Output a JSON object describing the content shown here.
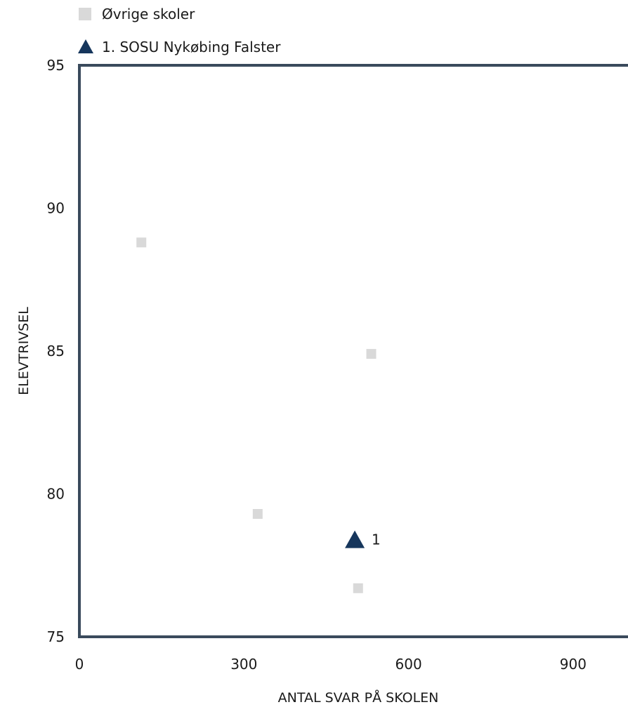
{
  "chart_data": {
    "type": "scatter",
    "title": "",
    "xlabel": "ANTAL SVAR PÅ SKOLEN",
    "ylabel": "ELEVTRIVSEL",
    "xlim": [
      0,
      1000
    ],
    "ylim": [
      75,
      95
    ],
    "x_ticks": [
      0,
      300,
      600,
      900
    ],
    "y_ticks": [
      75,
      80,
      85,
      90,
      95
    ],
    "legend_placement": "top-left",
    "series": [
      {
        "name": "Øvrige skoler",
        "marker": "square",
        "color": "#d9d9d9",
        "points": [
          {
            "x": 113,
            "y": 88.8
          },
          {
            "x": 532,
            "y": 84.9
          },
          {
            "x": 325,
            "y": 79.3
          },
          {
            "x": 508,
            "y": 76.7
          }
        ]
      },
      {
        "name": "1. SOSU Nykøbing Falster",
        "marker": "triangle",
        "color": "#16365c",
        "points": [
          {
            "x": 502,
            "y": 78.4,
            "label": "1"
          }
        ]
      }
    ],
    "axis_color": "#3a4a5c"
  }
}
